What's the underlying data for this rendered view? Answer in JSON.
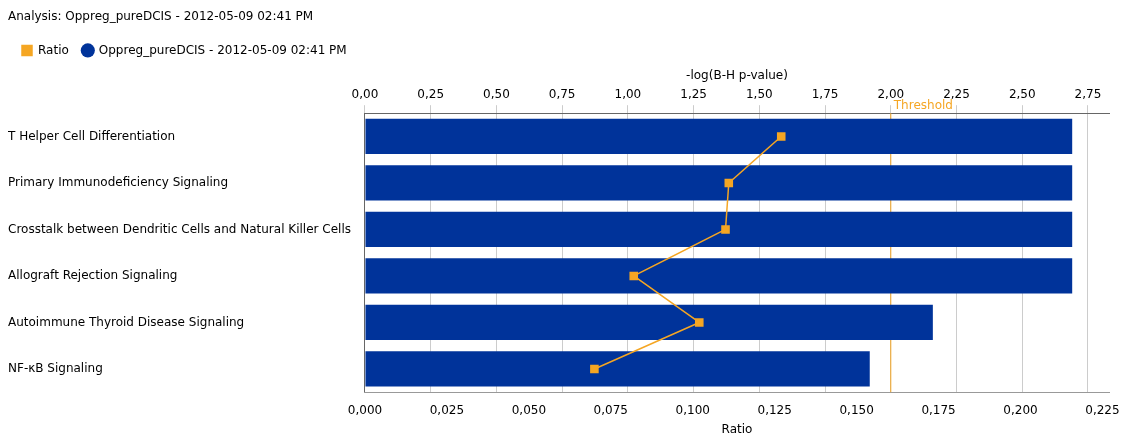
{
  "chart_data": {
    "type": "bar",
    "orientation": "horizontal",
    "title": "Analysis: Oppreg_pureDCIS - 2012-05-09 02:41 PM",
    "xlabel": "-log(B-H p-value)",
    "x2label": "Ratio",
    "categories": [
      "T Helper Cell Differentiation",
      "Primary Immunodeficiency Signaling",
      "Crosstalk between Dendritic Cells and Natural Killer Cells",
      "Allograft Rejection Signaling",
      "Autoimmune Thyroid Disease Signaling",
      "NF-κB Signaling"
    ],
    "series": [
      {
        "name": "Oppreg_pureDCIS - 2012-05-09 02:41 PM",
        "color": "#00339a",
        "values": [
          2.69,
          2.69,
          2.69,
          2.69,
          2.16,
          1.92
        ]
      },
      {
        "name": "Ratio",
        "type": "line",
        "axis": "x2",
        "color": "#f5a623",
        "values": [
          0.127,
          0.111,
          0.11,
          0.082,
          0.102,
          0.07
        ]
      }
    ],
    "xlim": [
      0,
      2.83
    ],
    "xticks": [
      {
        "value": 0,
        "label": "0,00"
      },
      {
        "value": 0.25,
        "label": "0,25"
      },
      {
        "value": 0.5,
        "label": "0,50"
      },
      {
        "value": 0.75,
        "label": "0,75"
      },
      {
        "value": 1,
        "label": "1,00"
      },
      {
        "value": 1.25,
        "label": "1,25"
      },
      {
        "value": 1.5,
        "label": "1,50"
      },
      {
        "value": 1.75,
        "label": "1,75"
      },
      {
        "value": 2,
        "label": "2,00"
      },
      {
        "value": 2.25,
        "label": "2,25"
      },
      {
        "value": 2.5,
        "label": "2,50"
      },
      {
        "value": 2.75,
        "label": "2,75"
      }
    ],
    "x2lim": [
      0,
      0.227
    ],
    "x2ticks": [
      {
        "value": 0,
        "label": "0,000"
      },
      {
        "value": 0.025,
        "label": "0,025"
      },
      {
        "value": 0.05,
        "label": "0,050"
      },
      {
        "value": 0.075,
        "label": "0,075"
      },
      {
        "value": 0.1,
        "label": "0,100"
      },
      {
        "value": 0.125,
        "label": "0,125"
      },
      {
        "value": 0.15,
        "label": "0,150"
      },
      {
        "value": 0.175,
        "label": "0,175"
      },
      {
        "value": 0.2,
        "label": "0,200"
      },
      {
        "value": 0.225,
        "label": "0,225"
      }
    ],
    "ref_lines": [
      {
        "axis": "x",
        "value": 2,
        "label": "Threshold",
        "color": "#f5a623"
      }
    ],
    "grid": "x",
    "legend": "top left",
    "marker": "square",
    "line_style": "solid"
  }
}
